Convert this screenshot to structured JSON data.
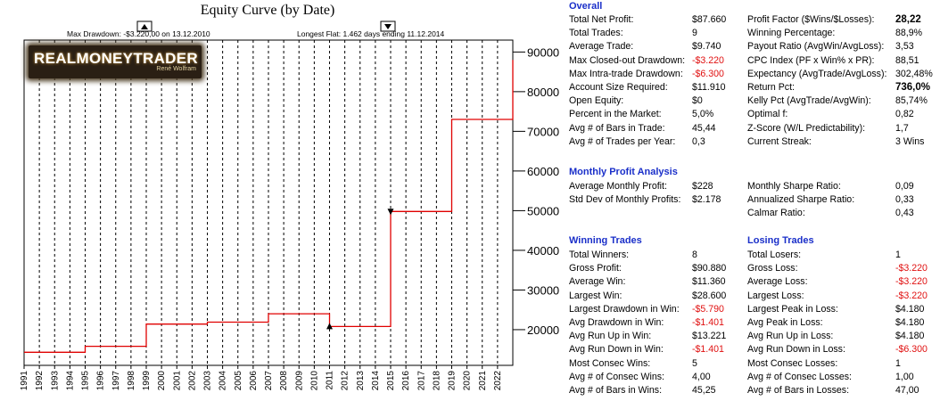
{
  "chart_data": {
    "type": "line",
    "title": "Equity Curve (by Date)",
    "x_tick_labels": [
      "1991",
      "1992",
      "1993",
      "1994",
      "1995",
      "1996",
      "1997",
      "1998",
      "1999",
      "2000",
      "2001",
      "2002",
      "2003",
      "2004",
      "2005",
      "2006",
      "2007",
      "2008",
      "2009",
      "2010",
      "2011",
      "2012",
      "2013",
      "2014",
      "2015",
      "2016",
      "2017",
      "2018",
      "2019",
      "2020",
      "2021",
      "2022"
    ],
    "y_ticks": [
      20000,
      30000,
      40000,
      50000,
      60000,
      70000,
      80000,
      90000
    ],
    "ylim": [
      11000,
      93000
    ],
    "xlim": [
      1991,
      2023
    ],
    "grid": true,
    "series": [
      {
        "color": "#e00000",
        "x": [
          1991,
          1995,
          1995,
          1999,
          1999,
          2003,
          2003,
          2007,
          2007,
          2011,
          2011,
          2015,
          2015,
          2019,
          2019,
          2023,
          2023
        ],
        "y": [
          14300,
          14300,
          15800,
          15800,
          21400,
          21400,
          21900,
          21900,
          24000,
          24000,
          20800,
          20800,
          49800,
          49800,
          73000,
          73000,
          88000
        ]
      }
    ],
    "markers": [
      {
        "x": 2011,
        "y": 20800,
        "shape": "up-triangle"
      },
      {
        "x": 2015,
        "y": 49800,
        "shape": "down-triangle"
      }
    ],
    "annotations": {
      "max_drawdown": "Max Drawdown: -$3.220,00 on 13.12.2010",
      "longest_flat": "Longest Flat: 1.462 days ending 11.12.2014"
    }
  },
  "logo": {
    "main": "REALMONEYTRADER",
    "sub": "René Wolfram"
  },
  "overall": {
    "title": "Overall",
    "left": [
      {
        "label": "Total Net Profit:",
        "value": "$87.660"
      },
      {
        "label": "Total Trades:",
        "value": "9"
      },
      {
        "label": "Average Trade:",
        "value": "$9.740"
      },
      {
        "label": "Max Closed-out Drawdown:",
        "value": "-$3.220",
        "neg": true
      },
      {
        "label": "Max Intra-trade Drawdown:",
        "value": "-$6.300",
        "neg": true
      },
      {
        "label": "Account Size Required:",
        "value": "$11.910"
      },
      {
        "label": "Open Equity:",
        "value": "$0"
      },
      {
        "label": "Percent in the Market:",
        "value": "5,0%"
      },
      {
        "label": "Avg # of Bars in Trade:",
        "value": "45,44"
      },
      {
        "label": "Avg # of Trades per Year:",
        "value": "0,3"
      }
    ],
    "right": [
      {
        "label": "Profit Factor ($Wins/$Losses):",
        "value": "28,22",
        "bold": true
      },
      {
        "label": "Winning Percentage:",
        "value": "88,9%"
      },
      {
        "label": "Payout Ratio (AvgWin/AvgLoss):",
        "value": "3,53"
      },
      {
        "label": "CPC Index (PF x Win% x PR):",
        "value": "88,51"
      },
      {
        "label": "Expectancy (AvgTrade/AvgLoss):",
        "value": "302,48%"
      },
      {
        "label": "Return Pct:",
        "value": "736,0%",
        "bold": true
      },
      {
        "label": "Kelly Pct (AvgTrade/AvgWin):",
        "value": "85,74%"
      },
      {
        "label": "Optimal f:",
        "value": "0,82"
      },
      {
        "label": "Z-Score (W/L Predictability):",
        "value": "1,7"
      },
      {
        "label": "Current Streak:",
        "value": "3 Wins"
      }
    ]
  },
  "monthly": {
    "title": "Monthly Profit Analysis",
    "left": [
      {
        "label": "Average Monthly Profit:",
        "value": "$228"
      },
      {
        "label": "Std Dev of Monthly Profits:",
        "value": "$2.178"
      }
    ],
    "right": [
      {
        "label": "Monthly Sharpe Ratio:",
        "value": "0,09"
      },
      {
        "label": "Annualized Sharpe Ratio:",
        "value": "0,33"
      },
      {
        "label": "Calmar Ratio:",
        "value": "0,43"
      }
    ]
  },
  "winning": {
    "title": "Winning Trades",
    "rows": [
      {
        "label": "Total Winners:",
        "value": "8"
      },
      {
        "label": "Gross Profit:",
        "value": "$90.880"
      },
      {
        "label": "Average Win:",
        "value": "$11.360"
      },
      {
        "label": "Largest Win:",
        "value": "$28.600"
      },
      {
        "label": "Largest Drawdown in Win:",
        "value": "-$5.790",
        "neg": true
      },
      {
        "label": "Avg Drawdown in Win:",
        "value": "-$1.401",
        "neg": true
      },
      {
        "label": "Avg Run Up in Win:",
        "value": "$13.221"
      },
      {
        "label": "Avg Run Down in Win:",
        "value": "-$1.401",
        "neg": true
      },
      {
        "label": "Most Consec Wins:",
        "value": "5"
      },
      {
        "label": "Avg # of Consec Wins:",
        "value": "4,00"
      },
      {
        "label": "Avg # of Bars in Wins:",
        "value": "45,25"
      }
    ]
  },
  "losing": {
    "title": "Losing Trades",
    "rows": [
      {
        "label": "Total Losers:",
        "value": "1"
      },
      {
        "label": "Gross Loss:",
        "value": "-$3.220",
        "neg": true
      },
      {
        "label": "Average Loss:",
        "value": "-$3.220",
        "neg": true
      },
      {
        "label": "Largest Loss:",
        "value": "-$3.220",
        "neg": true
      },
      {
        "label": "Largest Peak in Loss:",
        "value": "$4.180"
      },
      {
        "label": "Avg Peak in Loss:",
        "value": "$4.180"
      },
      {
        "label": "Avg Run Up in Loss:",
        "value": "$4.180"
      },
      {
        "label": "Avg Run Down in Loss:",
        "value": "-$6.300",
        "neg": true
      },
      {
        "label": "Most Consec Losses:",
        "value": "1"
      },
      {
        "label": "Avg # of Consec Losses:",
        "value": "1,00"
      },
      {
        "label": "Avg # of Bars in Losses:",
        "value": "47,00"
      }
    ]
  }
}
